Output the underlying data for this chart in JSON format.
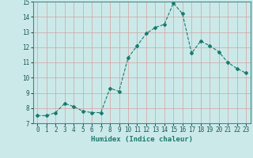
{
  "x": [
    0,
    1,
    2,
    3,
    4,
    5,
    6,
    7,
    8,
    9,
    10,
    11,
    12,
    13,
    14,
    15,
    16,
    17,
    18,
    19,
    20,
    21,
    22,
    23
  ],
  "y": [
    7.5,
    7.5,
    7.7,
    8.3,
    8.1,
    7.8,
    7.7,
    7.7,
    9.3,
    9.1,
    11.3,
    12.1,
    12.9,
    13.3,
    13.5,
    14.9,
    14.2,
    11.6,
    12.4,
    12.1,
    11.7,
    11.0,
    10.6,
    10.3
  ],
  "line_color": "#1a7a6e",
  "marker": "D",
  "marker_size": 2,
  "bg_color": "#cce9e9",
  "grid_color": "#d4a0a0",
  "xlim": [
    -0.5,
    23.5
  ],
  "ylim": [
    7,
    15
  ],
  "yticks": [
    7,
    8,
    9,
    10,
    11,
    12,
    13,
    14,
    15
  ],
  "xticks": [
    0,
    1,
    2,
    3,
    4,
    5,
    6,
    7,
    8,
    9,
    10,
    11,
    12,
    13,
    14,
    15,
    16,
    17,
    18,
    19,
    20,
    21,
    22,
    23
  ],
  "xlabel": "Humidex (Indice chaleur)",
  "xlabel_fontsize": 6.5,
  "tick_fontsize": 5.5,
  "line_width": 0.8
}
